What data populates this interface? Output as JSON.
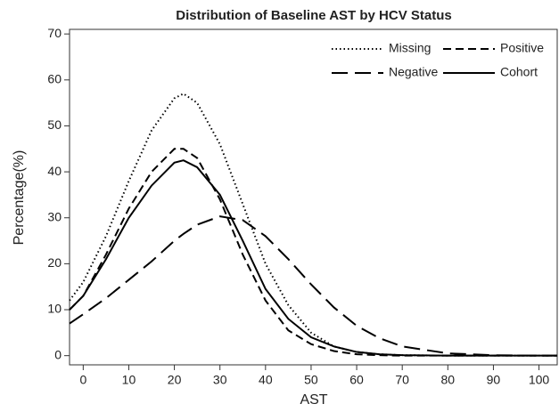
{
  "chart_data": {
    "type": "line",
    "title": "Distribution of Baseline AST by HCV Status",
    "x_label": "AST",
    "y_label": "Percentage(%)",
    "x": [
      -3,
      0,
      5,
      10,
      15,
      20,
      22,
      25,
      30,
      35,
      40,
      45,
      50,
      55,
      60,
      65,
      70,
      80,
      90,
      100,
      104
    ],
    "series": [
      {
        "name": "Missing",
        "color": "#000000",
        "dash": "1.5 3",
        "values": [
          12,
          16,
          26,
          38,
          49,
          56,
          57,
          55,
          46,
          33,
          20,
          11,
          5,
          2,
          0.8,
          0.3,
          0.1,
          0,
          0,
          0,
          0
        ]
      },
      {
        "name": "Positive",
        "color": "#000000",
        "dash": "9 5",
        "values": [
          10,
          13,
          22,
          32,
          40,
          45,
          45,
          43,
          34,
          22,
          12,
          5.5,
          2.5,
          1,
          0.3,
          0.1,
          0,
          0,
          0,
          0,
          0
        ]
      },
      {
        "name": "Negative",
        "color": "#000000",
        "dash": "18 8",
        "values": [
          7,
          9,
          12.5,
          16.5,
          20.5,
          25,
          26.5,
          28.5,
          30.3,
          29.5,
          26,
          21,
          15.5,
          10.5,
          6.5,
          3.8,
          2,
          0.5,
          0.1,
          0,
          0
        ]
      },
      {
        "name": "Cohort",
        "color": "#000000",
        "dash": "none",
        "values": [
          10,
          13,
          21,
          30,
          37,
          42,
          42.5,
          41,
          35,
          25,
          14.5,
          8,
          4,
          2,
          0.8,
          0.3,
          0.1,
          0,
          0,
          0,
          0
        ]
      }
    ],
    "xlim": [
      -3,
      104
    ],
    "ylim": [
      -2,
      71
    ],
    "xticks": [
      0,
      10,
      20,
      30,
      40,
      50,
      60,
      70,
      80,
      90,
      100
    ],
    "yticks": [
      0,
      10,
      20,
      30,
      40,
      50,
      60,
      70
    ],
    "grid": false,
    "legend": "top-right"
  }
}
